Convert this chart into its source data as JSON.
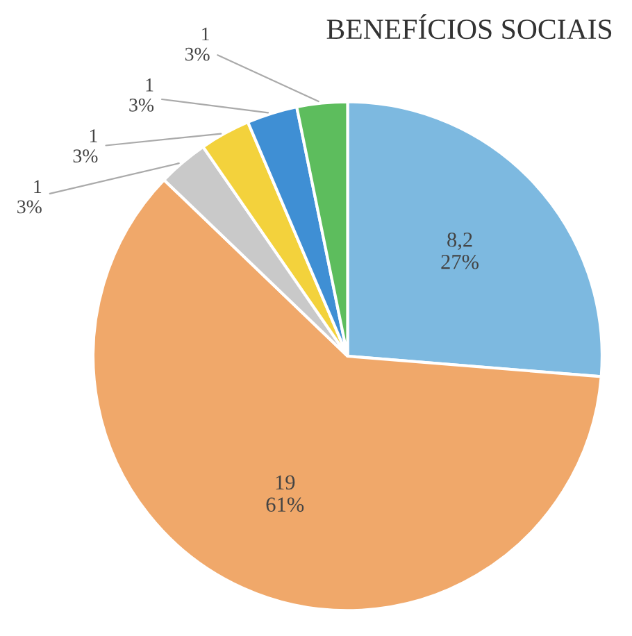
{
  "chart_data": {
    "type": "pie",
    "title": "BENEFÍCIOS SOCIAIS",
    "categories": [
      null,
      null,
      null,
      null,
      null,
      null
    ],
    "values": [
      8.2,
      19,
      1,
      1,
      1,
      1
    ],
    "colors": [
      "#7db9e0",
      "#f0a86a",
      "#c9c9c9",
      "#f3d23c",
      "#3f8fd4",
      "#5dbd5d"
    ],
    "value_labels": [
      "8,2\n27%",
      "19\n61%",
      "1\n3%",
      "1\n3%",
      "1\n3%",
      "1\n3%"
    ]
  }
}
